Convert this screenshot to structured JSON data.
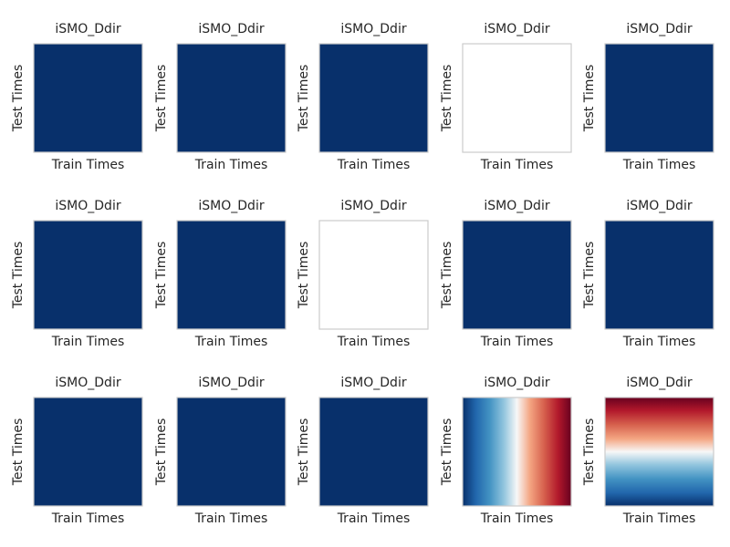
{
  "chart_data": {
    "type": "heatmap",
    "layout": "3x5 grid",
    "colormap": "RdBu_r",
    "panels": [
      {
        "title": "iSMO_Ddir",
        "xlabel": "Train Times",
        "ylabel": "Test Times",
        "fill": "uniform-dark"
      },
      {
        "title": "iSMO_Ddir",
        "xlabel": "Train Times",
        "ylabel": "Test Times",
        "fill": "uniform-dark"
      },
      {
        "title": "iSMO_Ddir",
        "xlabel": "Train Times",
        "ylabel": "Test Times",
        "fill": "uniform-dark"
      },
      {
        "title": "iSMO_Ddir",
        "xlabel": "Train Times",
        "ylabel": "Test Times",
        "fill": "empty"
      },
      {
        "title": "iSMO_Ddir",
        "xlabel": "Train Times",
        "ylabel": "Test Times",
        "fill": "uniform-dark"
      },
      {
        "title": "iSMO_Ddir",
        "xlabel": "Train Times",
        "ylabel": "Test Times",
        "fill": "uniform-dark"
      },
      {
        "title": "iSMO_Ddir",
        "xlabel": "Train Times",
        "ylabel": "Test Times",
        "fill": "uniform-dark"
      },
      {
        "title": "iSMO_Ddir",
        "xlabel": "Train Times",
        "ylabel": "Test Times",
        "fill": "empty"
      },
      {
        "title": "iSMO_Ddir",
        "xlabel": "Train Times",
        "ylabel": "Test Times",
        "fill": "uniform-dark"
      },
      {
        "title": "iSMO_Ddir",
        "xlabel": "Train Times",
        "ylabel": "Test Times",
        "fill": "uniform-dark"
      },
      {
        "title": "iSMO_Ddir",
        "xlabel": "Train Times",
        "ylabel": "Test Times",
        "fill": "uniform-dark"
      },
      {
        "title": "iSMO_Ddir",
        "xlabel": "Train Times",
        "ylabel": "Test Times",
        "fill": "uniform-dark"
      },
      {
        "title": "iSMO_Ddir",
        "xlabel": "Train Times",
        "ylabel": "Test Times",
        "fill": "uniform-dark"
      },
      {
        "title": "iSMO_Ddir",
        "xlabel": "Train Times",
        "ylabel": "Test Times",
        "fill": "gradient-horizontal"
      },
      {
        "title": "iSMO_Ddir",
        "xlabel": "Train Times",
        "ylabel": "Test Times",
        "fill": "gradient-vertical"
      }
    ]
  },
  "colors": {
    "dark": "#08306b",
    "frame": "#cccccc",
    "background": "#ffffff",
    "text": "#262626",
    "gradient_stops": [
      "#08306b",
      "#2166ac",
      "#4393c3",
      "#92c5de",
      "#f7f7f7",
      "#f4a582",
      "#d6604d",
      "#b2182b",
      "#67001f"
    ]
  }
}
